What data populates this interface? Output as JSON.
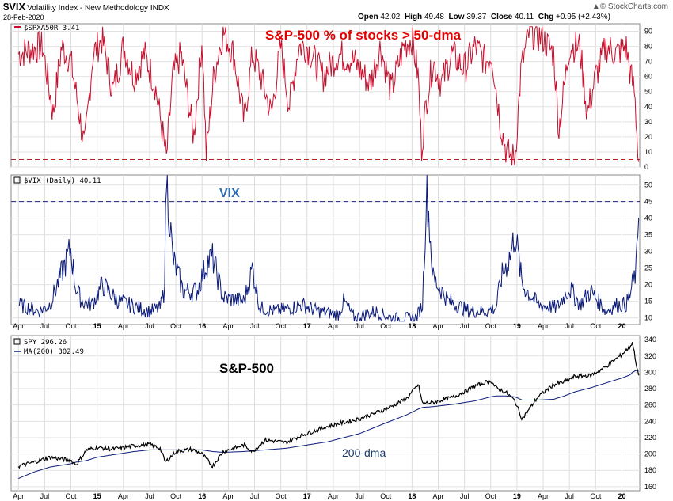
{
  "header": {
    "symbol": "$VIX",
    "name": "Volatility Index - New Methodology INDX",
    "date": "28-Feb-2020",
    "open_label": "Open",
    "open": "42.02",
    "high_label": "High",
    "high": "49.48",
    "low_label": "Low",
    "low": "39.37",
    "close_label": "Close",
    "close": "40.11",
    "chg_label": "Chg",
    "chg": "+0.95 (+2.43%)",
    "brand": "© StockCharts.com",
    "brand_icon": "up-arrow-icon"
  },
  "colors": {
    "breadth": "#c8102e",
    "vix": "#0a1a7a",
    "spy": "#000000",
    "ma": "#0a1a7a",
    "ref_red": "#b22222",
    "ref_blue": "#1a237e"
  },
  "chart_data": [
    {
      "type": "line",
      "legend": "$SPXA50R 3.41",
      "annotation": "S&P-500 % of stocks > 50-dma",
      "ylim": [
        0,
        95
      ],
      "yticks": [
        "0",
        "10",
        "20",
        "30",
        "40",
        "50",
        "60",
        "70",
        "80",
        "90"
      ],
      "reference_line": 5,
      "x": [
        2014.25,
        2014.37,
        2014.48,
        2014.58,
        2014.66,
        2014.75,
        2014.82,
        2014.88,
        2014.96,
        2015.05,
        2015.15,
        2015.25,
        2015.35,
        2015.45,
        2015.55,
        2015.63,
        2015.66,
        2015.72,
        2015.8,
        2015.92,
        2016.0,
        2016.04,
        2016.11,
        2016.2,
        2016.3,
        2016.4,
        2016.48,
        2016.56,
        2016.66,
        2016.75,
        2016.83,
        2016.92,
        2017.0,
        2017.15,
        2017.3,
        2017.45,
        2017.6,
        2017.7,
        2017.8,
        2017.92,
        2018.0,
        2018.06,
        2018.09,
        2018.14,
        2018.2,
        2018.28,
        2018.38,
        2018.5,
        2018.6,
        2018.7,
        2018.76,
        2018.84,
        2018.9,
        2018.98,
        2019.04,
        2019.12,
        2019.25,
        2019.35,
        2019.4,
        2019.5,
        2019.6,
        2019.67,
        2019.75,
        2019.85,
        2019.95,
        2020.04,
        2020.08,
        2020.12,
        2020.16
      ],
      "values": [
        75,
        78,
        80,
        35,
        80,
        70,
        40,
        12,
        75,
        85,
        50,
        80,
        60,
        75,
        55,
        20,
        5,
        60,
        75,
        20,
        85,
        8,
        60,
        90,
        75,
        30,
        75,
        60,
        35,
        80,
        40,
        80,
        80,
        60,
        75,
        70,
        55,
        80,
        50,
        80,
        85,
        60,
        12,
        45,
        70,
        55,
        75,
        65,
        80,
        70,
        75,
        30,
        10,
        5,
        65,
        90,
        85,
        75,
        25,
        80,
        80,
        35,
        60,
        80,
        75,
        80,
        62,
        50,
        3.41
      ]
    },
    {
      "type": "line",
      "legend": "$VIX (Daily) 40.11",
      "annotation": "VIX",
      "ylim": [
        8,
        53
      ],
      "yticks": [
        "10",
        "15",
        "20",
        "25",
        "30",
        "35",
        "40",
        "45",
        "50"
      ],
      "reference_line": 45,
      "x": [
        2014.25,
        2014.45,
        2014.55,
        2014.75,
        2014.79,
        2014.85,
        2014.95,
        2015.05,
        2015.2,
        2015.4,
        2015.5,
        2015.6,
        2015.64,
        2015.66,
        2015.72,
        2015.82,
        2015.95,
        2016.05,
        2016.1,
        2016.2,
        2016.4,
        2016.48,
        2016.55,
        2016.7,
        2016.85,
        2016.95,
        2017.1,
        2017.3,
        2017.35,
        2017.45,
        2017.65,
        2017.8,
        2017.95,
        2018.04,
        2018.1,
        2018.14,
        2018.2,
        2018.35,
        2018.55,
        2018.7,
        2018.8,
        2018.85,
        2018.95,
        2018.98,
        2019.05,
        2019.2,
        2019.38,
        2019.5,
        2019.6,
        2019.7,
        2019.85,
        2019.95,
        2020.04,
        2020.08,
        2020.1,
        2020.12,
        2020.14,
        2020.15,
        2020.16
      ],
      "values": [
        14,
        12,
        14,
        31,
        20,
        15,
        14,
        20,
        15,
        13,
        12,
        13,
        18,
        53,
        28,
        18,
        18,
        27,
        28,
        16,
        15,
        25,
        13,
        12,
        13,
        14,
        12,
        11,
        15,
        10,
        12,
        10,
        10,
        10,
        14,
        50,
        22,
        15,
        12,
        12,
        13,
        22,
        30,
        36,
        20,
        14,
        13,
        19,
        14,
        18,
        12,
        14,
        14,
        17,
        20,
        22,
        25,
        35,
        40.11
      ]
    },
    {
      "type": "line",
      "legend_spy": "SPY 296.26",
      "legend_ma": "MA(200) 302.49",
      "annotation": "S&P-500",
      "ma_annotation": "200-dma",
      "ylim": [
        155,
        345
      ],
      "yticks": [
        "160",
        "180",
        "200",
        "220",
        "240",
        "260",
        "280",
        "300",
        "320",
        "340"
      ],
      "x": [
        2014.25,
        2014.4,
        2014.55,
        2014.75,
        2014.8,
        2014.9,
        2015.0,
        2015.15,
        2015.35,
        2015.5,
        2015.6,
        2015.65,
        2015.75,
        2015.9,
        2016.0,
        2016.1,
        2016.2,
        2016.4,
        2016.48,
        2016.6,
        2016.8,
        2016.95,
        2017.2,
        2017.5,
        2017.75,
        2017.95,
        2018.06,
        2018.1,
        2018.2,
        2018.4,
        2018.6,
        2018.75,
        2018.8,
        2018.9,
        2018.98,
        2019.05,
        2019.2,
        2019.35,
        2019.45,
        2019.55,
        2019.7,
        2019.85,
        2020.0,
        2020.08,
        2020.1,
        2020.13,
        2020.15,
        2020.16
      ],
      "values": [
        185,
        190,
        196,
        192,
        187,
        205,
        208,
        206,
        210,
        212,
        207,
        190,
        203,
        206,
        200,
        185,
        203,
        211,
        203,
        217,
        214,
        223,
        234,
        243,
        255,
        268,
        285,
        262,
        263,
        270,
        283,
        290,
        281,
        275,
        265,
        243,
        270,
        285,
        288,
        295,
        296,
        307,
        322,
        332,
        337,
        316,
        300,
        296.26
      ],
      "ma_values": [
        170,
        178,
        184,
        188,
        190,
        192,
        196,
        199,
        203,
        205,
        205,
        205,
        205,
        205,
        205,
        203,
        202,
        203,
        204,
        205,
        207,
        210,
        215,
        225,
        238,
        248,
        255,
        257,
        258,
        261,
        265,
        270,
        271,
        271,
        270,
        266,
        266,
        267,
        271,
        276,
        281,
        287,
        293,
        297,
        300,
        302,
        302.5,
        302.49
      ]
    }
  ],
  "x_axis": {
    "ticks": [
      {
        "label": "Apr",
        "t": 2014.25
      },
      {
        "label": "Jul",
        "t": 2014.5
      },
      {
        "label": "Oct",
        "t": 2014.75
      },
      {
        "label": "15",
        "t": 2015.0
      },
      {
        "label": "Apr",
        "t": 2015.25
      },
      {
        "label": "Jul",
        "t": 2015.5
      },
      {
        "label": "Oct",
        "t": 2015.75
      },
      {
        "label": "16",
        "t": 2016.0
      },
      {
        "label": "Apr",
        "t": 2016.25
      },
      {
        "label": "Jul",
        "t": 2016.5
      },
      {
        "label": "Oct",
        "t": 2016.75
      },
      {
        "label": "17",
        "t": 2017.0
      },
      {
        "label": "Apr",
        "t": 2017.25
      },
      {
        "label": "Jul",
        "t": 2017.5
      },
      {
        "label": "Oct",
        "t": 2017.75
      },
      {
        "label": "18",
        "t": 2018.0
      },
      {
        "label": "Apr",
        "t": 2018.25
      },
      {
        "label": "Jul",
        "t": 2018.5
      },
      {
        "label": "Oct",
        "t": 2018.75
      },
      {
        "label": "19",
        "t": 2019.0
      },
      {
        "label": "Apr",
        "t": 2019.25
      },
      {
        "label": "Jul",
        "t": 2019.5
      },
      {
        "label": "Oct",
        "t": 2019.75
      },
      {
        "label": "20",
        "t": 2020.0
      }
    ],
    "range": [
      2014.18,
      2020.17
    ]
  }
}
